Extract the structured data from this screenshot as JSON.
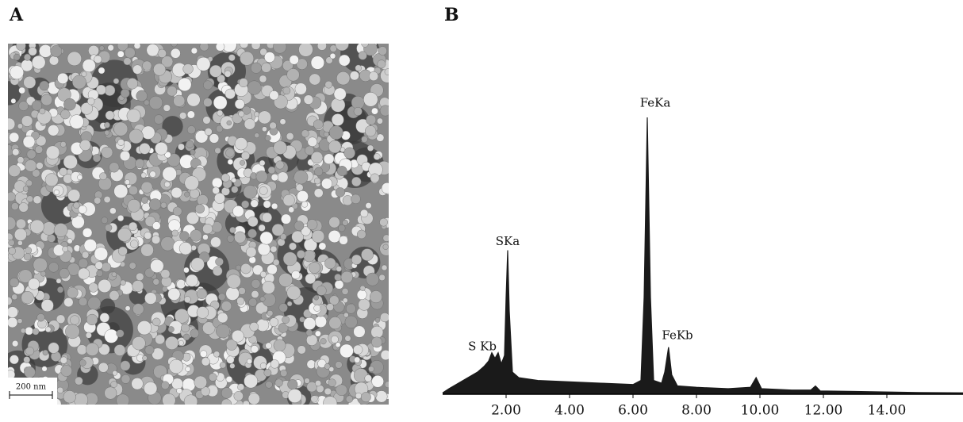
{
  "panel_a": {
    "label": "A",
    "scale_bar": "200 nm"
  },
  "chart_data": {
    "type": "area",
    "panel_label": "B",
    "color": "#1a1a1a",
    "x": [
      0,
      0.2,
      0.5,
      0.8,
      1.1,
      1.3,
      1.45,
      1.55,
      1.65,
      1.75,
      1.85,
      1.95,
      2.0,
      2.05,
      2.1,
      2.2,
      2.4,
      3,
      4,
      5,
      6,
      6.25,
      6.35,
      6.45,
      6.55,
      6.65,
      6.9,
      7.0,
      7.12,
      7.22,
      7.4,
      8,
      9,
      9.7,
      9.88,
      10.05,
      11,
      11.6,
      11.75,
      11.9,
      13,
      15,
      16.4
    ],
    "values": [
      0.5,
      2,
      4,
      6,
      8,
      10,
      12,
      15,
      13,
      15,
      11,
      14,
      35,
      52,
      30,
      8,
      6,
      5,
      4.5,
      4,
      3.5,
      5,
      35,
      100,
      35,
      5,
      4,
      8,
      17,
      7,
      3,
      2.5,
      2,
      2.5,
      6,
      2,
      1.5,
      1.5,
      3,
      1.2,
      1,
      0.6,
      0.5
    ],
    "xlim": [
      0,
      16.4
    ],
    "ylim": [
      0,
      100
    ],
    "xticks": [
      {
        "value": 2,
        "label": "2.00"
      },
      {
        "value": 4,
        "label": "4.00"
      },
      {
        "value": 6,
        "label": "6.00"
      },
      {
        "value": 8,
        "label": "8.00"
      },
      {
        "value": 10,
        "label": "10.00"
      },
      {
        "value": 12,
        "label": "12.00"
      },
      {
        "value": 14,
        "label": "14.00"
      }
    ],
    "annotations": [
      {
        "text": "S Kb",
        "x": 1.25,
        "y": 17
      },
      {
        "text": "SKa",
        "x": 2.05,
        "y": 55
      },
      {
        "text": "FeKa",
        "x": 6.7,
        "y": 105
      },
      {
        "text": "FeKb",
        "x": 7.4,
        "y": 21
      }
    ]
  }
}
